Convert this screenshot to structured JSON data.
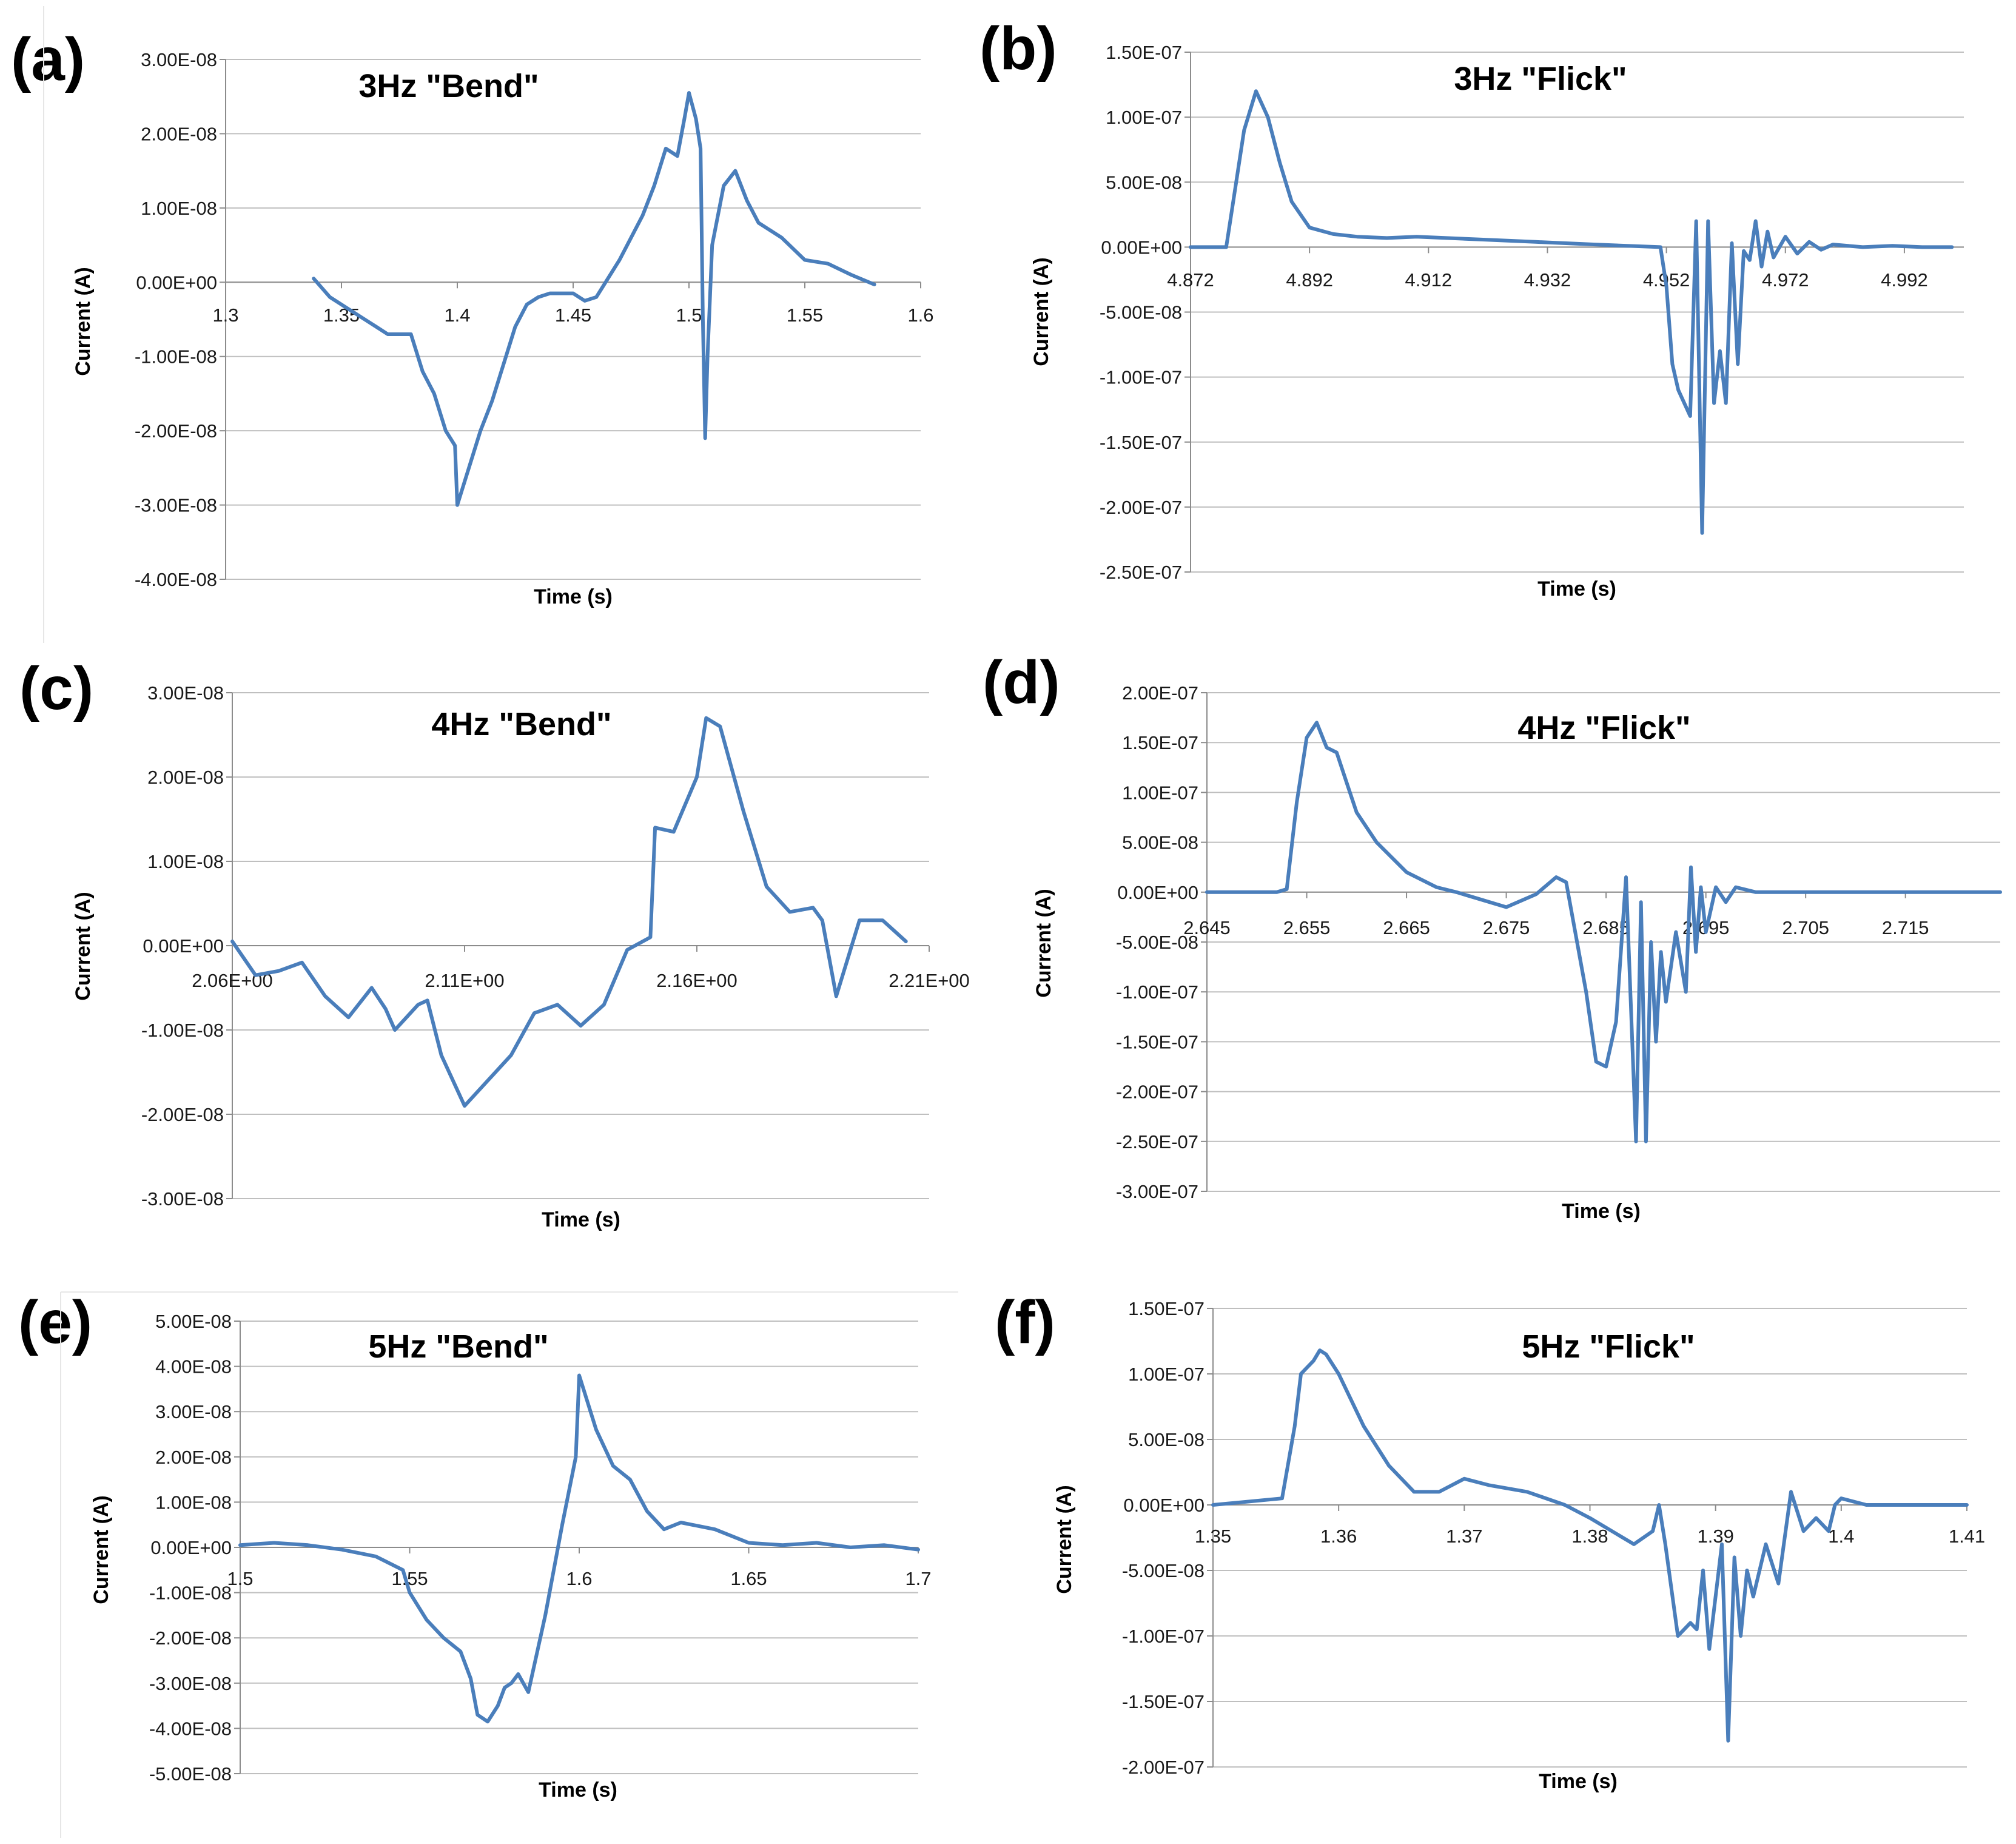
{
  "figure": {
    "line_color": "#4a7ebb",
    "grid_color": "#bfbfbf"
  },
  "chart_data": [
    {
      "id": "a",
      "letter": "(a)",
      "type": "line",
      "title": "3Hz \"Bend\"",
      "xlabel": "Time (s)",
      "ylabel": "Current (A)",
      "xlim": [
        1.3,
        1.6
      ],
      "ylim": [
        -4e-08,
        3e-08
      ],
      "xticks": [
        1.3,
        1.35,
        1.4,
        1.45,
        1.5,
        1.55,
        1.6
      ],
      "xtick_labels": [
        "1.3",
        "1.35",
        "1.4",
        "1.45",
        "1.5",
        "1.55",
        "1.6"
      ],
      "yticks": [
        3e-08,
        2e-08,
        1e-08,
        0,
        -1e-08,
        -2e-08,
        -3e-08,
        -4e-08
      ],
      "ytick_labels": [
        "3.00E-08",
        "2.00E-08",
        "1.00E-08",
        "0.00E+00",
        "-1.00E-08",
        "-2.00E-08",
        "-3.00E-08",
        "-4.00E-08"
      ],
      "series": [
        {
          "name": "Current",
          "x": [
            1.338,
            1.345,
            1.355,
            1.36,
            1.365,
            1.37,
            1.375,
            1.38,
            1.385,
            1.39,
            1.395,
            1.399,
            1.4,
            1.405,
            1.41,
            1.415,
            1.42,
            1.425,
            1.43,
            1.435,
            1.44,
            1.45,
            1.455,
            1.46,
            1.47,
            1.48,
            1.485,
            1.49,
            1.495,
            1.498,
            1.5,
            1.503,
            1.505,
            1.506,
            1.507,
            1.508,
            1.51,
            1.515,
            1.52,
            1.525,
            1.53,
            1.54,
            1.55,
            1.56,
            1.57,
            1.58
          ],
          "y": [
            5e-10,
            -2e-09,
            -4e-09,
            -5e-09,
            -6e-09,
            -7e-09,
            -7e-09,
            -7e-09,
            -1.2e-08,
            -1.5e-08,
            -2e-08,
            -2.2e-08,
            -3e-08,
            -2.5e-08,
            -2e-08,
            -1.6e-08,
            -1.1e-08,
            -6e-09,
            -3e-09,
            -2e-09,
            -1.5e-09,
            -1.5e-09,
            -2.5e-09,
            -2e-09,
            3e-09,
            9e-09,
            1.3e-08,
            1.8e-08,
            1.7e-08,
            2.2e-08,
            2.55e-08,
            2.2e-08,
            1.8e-08,
            -5e-09,
            -2.1e-08,
            -1e-08,
            5e-09,
            1.3e-08,
            1.5e-08,
            1.1e-08,
            8e-09,
            6e-09,
            3e-09,
            2.5e-09,
            1e-09,
            -3e-10
          ]
        }
      ]
    },
    {
      "id": "b",
      "letter": "(b)",
      "type": "line",
      "title": "3Hz  \"Flick\"",
      "xlabel": "Time (s)",
      "ylabel": "Current (A)",
      "xlim": [
        4.872,
        5.002
      ],
      "ylim": [
        -2.5e-07,
        1.5e-07
      ],
      "xticks": [
        4.872,
        4.892,
        4.912,
        4.932,
        4.952,
        4.972,
        4.992
      ],
      "xtick_labels": [
        "4.872",
        "4.892",
        "4.912",
        "4.932",
        "4.952",
        "4.972",
        "4.992"
      ],
      "yticks": [
        1.5e-07,
        1e-07,
        5e-08,
        0,
        -5e-08,
        -1e-07,
        -1.5e-07,
        -2e-07,
        -2.5e-07
      ],
      "ytick_labels": [
        "1.50E-07",
        "1.00E-07",
        "5.00E-08",
        "0.00E+00",
        "-5.00E-08",
        "-1.00E-07",
        "-1.50E-07",
        "-2.00E-07",
        "-2.50E-07"
      ],
      "series": [
        {
          "name": "Current",
          "x": [
            4.872,
            4.878,
            4.879,
            4.881,
            4.883,
            4.885,
            4.887,
            4.889,
            4.892,
            4.896,
            4.9,
            4.905,
            4.91,
            4.92,
            4.93,
            4.94,
            4.951,
            4.952,
            4.953,
            4.954,
            4.956,
            4.957,
            4.958,
            4.959,
            4.96,
            4.961,
            4.962,
            4.963,
            4.964,
            4.965,
            4.966,
            4.967,
            4.968,
            4.969,
            4.97,
            4.972,
            4.974,
            4.976,
            4.978,
            4.98,
            4.985,
            4.99,
            4.995,
            5.0
          ],
          "y": [
            0,
            0,
            3e-08,
            9e-08,
            1.2e-07,
            1e-07,
            6.5e-08,
            3.5e-08,
            1.5e-08,
            1e-08,
            8e-09,
            7e-09,
            8e-09,
            6e-09,
            4e-09,
            2e-09,
            0,
            -3e-08,
            -9e-08,
            -1.1e-07,
            -1.3e-07,
            2e-08,
            -2.2e-07,
            2e-08,
            -1.2e-07,
            -8e-08,
            -1.2e-07,
            3e-09,
            -9e-08,
            -3e-09,
            -1e-08,
            2e-08,
            -1.5e-08,
            1.2e-08,
            -8e-09,
            8e-09,
            -5e-09,
            4e-09,
            -2e-09,
            2e-09,
            0,
            1e-09,
            0,
            0
          ]
        }
      ]
    },
    {
      "id": "c",
      "letter": "(c)",
      "type": "line",
      "title": "4Hz \"Bend\"",
      "xlabel": "Time (s)",
      "ylabel": "Current (A)",
      "xlim": [
        2.06,
        2.21
      ],
      "ylim": [
        -3e-08,
        3e-08
      ],
      "xticks": [
        2.06,
        2.11,
        2.16,
        2.21
      ],
      "xtick_labels": [
        "2.06E+00",
        "2.11E+00",
        "2.16E+00",
        "2.21E+00"
      ],
      "yticks": [
        3e-08,
        2e-08,
        1e-08,
        0,
        -1e-08,
        -2e-08,
        -3e-08
      ],
      "ytick_labels": [
        "3.00E-08",
        "2.00E-08",
        "1.00E-08",
        "0.00E+00",
        "-1.00E-08",
        "-2.00E-08",
        "-3.00E-08"
      ],
      "series": [
        {
          "name": "Current",
          "x": [
            2.06,
            2.065,
            2.07,
            2.075,
            2.08,
            2.085,
            2.09,
            2.093,
            2.095,
            2.1,
            2.102,
            2.105,
            2.11,
            2.115,
            2.12,
            2.125,
            2.13,
            2.135,
            2.14,
            2.145,
            2.15,
            2.151,
            2.155,
            2.16,
            2.162,
            2.165,
            2.17,
            2.175,
            2.18,
            2.185,
            2.187,
            2.19,
            2.195,
            2.2,
            2.205
          ],
          "y": [
            5e-10,
            -3.5e-09,
            -3e-09,
            -2e-09,
            -6e-09,
            -8.5e-09,
            -5e-09,
            -7.5e-09,
            -1e-08,
            -7e-09,
            -6.5e-09,
            -1.3e-08,
            -1.9e-08,
            -1.6e-08,
            -1.3e-08,
            -8e-09,
            -7e-09,
            -9.5e-09,
            -7e-09,
            -5e-10,
            1e-09,
            1.4e-08,
            1.35e-08,
            2e-08,
            2.7e-08,
            2.6e-08,
            1.6e-08,
            7e-09,
            4e-09,
            4.5e-09,
            3e-09,
            -6e-09,
            3e-09,
            3e-09,
            5e-10
          ]
        }
      ]
    },
    {
      "id": "d",
      "letter": "(d)",
      "type": "line",
      "title": "4Hz \"Flick\"",
      "xlabel": "Time (s)",
      "ylabel": "Current (A)",
      "xlim": [
        2.645,
        2.7245
      ],
      "ylim": [
        -3e-07,
        2e-07
      ],
      "xticks": [
        2.645,
        2.655,
        2.665,
        2.675,
        2.685,
        2.695,
        2.705,
        2.715
      ],
      "xtick_labels": [
        "2.645",
        "2.655",
        "2.665",
        "2.675",
        "2.685",
        "2.695",
        "2.705",
        "2.715"
      ],
      "yticks": [
        2e-07,
        1.5e-07,
        1e-07,
        5e-08,
        0,
        -5e-08,
        -1e-07,
        -1.5e-07,
        -2e-07,
        -2.5e-07,
        -3e-07
      ],
      "ytick_labels": [
        "2.00E-07",
        "1.50E-07",
        "1.00E-07",
        "5.00E-08",
        "0.00E+00",
        "-5.00E-08",
        "-1.00E-07",
        "-1.50E-07",
        "-2.00E-07",
        "-2.50E-07",
        "-3.00E-07"
      ],
      "series": [
        {
          "name": "Current",
          "x": [
            2.645,
            2.652,
            2.653,
            2.654,
            2.655,
            2.656,
            2.657,
            2.658,
            2.659,
            2.66,
            2.662,
            2.665,
            2.668,
            2.67,
            2.675,
            2.678,
            2.68,
            2.681,
            2.683,
            2.684,
            2.685,
            2.686,
            2.687,
            2.688,
            2.6885,
            2.689,
            2.6895,
            2.69,
            2.6905,
            2.691,
            2.692,
            2.693,
            2.6935,
            2.694,
            2.6945,
            2.695,
            2.696,
            2.697,
            2.698,
            2.7,
            2.71,
            2.72,
            2.7245
          ],
          "y": [
            0,
            0,
            3e-09,
            9e-08,
            1.55e-07,
            1.7e-07,
            1.45e-07,
            1.4e-07,
            1.1e-07,
            8e-08,
            5e-08,
            2e-08,
            5e-09,
            0,
            -1.5e-08,
            -2e-09,
            1.5e-08,
            1e-08,
            -1e-07,
            -1.7e-07,
            -1.75e-07,
            -1.3e-07,
            1.5e-08,
            -2.5e-07,
            -1e-08,
            -2.5e-07,
            -5e-08,
            -1.5e-07,
            -6e-08,
            -1.1e-07,
            -4e-08,
            -1e-07,
            2.5e-08,
            -6e-08,
            5e-09,
            -4e-08,
            5e-09,
            -1e-08,
            5e-09,
            0,
            0,
            0,
            0
          ]
        }
      ]
    },
    {
      "id": "e",
      "letter": "(e)",
      "type": "line",
      "title": "5Hz \"Bend\"",
      "xlabel": "Time (s)",
      "ylabel": "Current (A)",
      "xlim": [
        1.5,
        1.7
      ],
      "ylim": [
        -5e-08,
        5e-08
      ],
      "xticks": [
        1.5,
        1.55,
        1.6,
        1.65,
        1.7
      ],
      "xtick_labels": [
        "1.5",
        "1.55",
        "1.6",
        "1.65",
        "1.7"
      ],
      "yticks": [
        5e-08,
        4e-08,
        3e-08,
        2e-08,
        1e-08,
        0,
        -1e-08,
        -2e-08,
        -3e-08,
        -4e-08,
        -5e-08
      ],
      "ytick_labels": [
        "5.00E-08",
        "4.00E-08",
        "3.00E-08",
        "2.00E-08",
        "1.00E-08",
        "0.00E+00",
        "-1.00E-08",
        "-2.00E-08",
        "-3.00E-08",
        "-4.00E-08",
        "-5.00E-08"
      ],
      "series": [
        {
          "name": "Current",
          "x": [
            1.5,
            1.51,
            1.52,
            1.53,
            1.54,
            1.548,
            1.55,
            1.555,
            1.56,
            1.565,
            1.568,
            1.57,
            1.573,
            1.576,
            1.578,
            1.58,
            1.582,
            1.585,
            1.59,
            1.595,
            1.599,
            1.6,
            1.605,
            1.61,
            1.615,
            1.62,
            1.625,
            1.63,
            1.64,
            1.65,
            1.66,
            1.67,
            1.68,
            1.69,
            1.7
          ],
          "y": [
            5e-10,
            1e-09,
            5e-10,
            -5e-10,
            -2e-09,
            -5e-09,
            -1e-08,
            -1.6e-08,
            -2e-08,
            -2.3e-08,
            -2.9e-08,
            -3.7e-08,
            -3.85e-08,
            -3.5e-08,
            -3.1e-08,
            -3e-08,
            -2.8e-08,
            -3.2e-08,
            -1.5e-08,
            5e-09,
            2e-08,
            3.8e-08,
            2.6e-08,
            1.8e-08,
            1.5e-08,
            8e-09,
            4e-09,
            5.5e-09,
            4e-09,
            1e-09,
            5e-10,
            1e-09,
            0,
            5e-10,
            -5e-10
          ]
        }
      ]
    },
    {
      "id": "f",
      "letter": "(f)",
      "type": "line",
      "title": "5Hz \"Flick\"",
      "xlabel": "Time (s)",
      "ylabel": "Current (A)",
      "xlim": [
        1.35,
        1.41
      ],
      "ylim": [
        -2e-07,
        1.5e-07
      ],
      "xticks": [
        1.35,
        1.36,
        1.37,
        1.38,
        1.39,
        1.4,
        1.41
      ],
      "xtick_labels": [
        "1.35",
        "1.36",
        "1.37",
        "1.38",
        "1.39",
        "1.4",
        "1.41"
      ],
      "yticks": [
        1.5e-07,
        1e-07,
        5e-08,
        0,
        -5e-08,
        -1e-07,
        -1.5e-07,
        -2e-07
      ],
      "ytick_labels": [
        "1.50E-07",
        "1.00E-07",
        "5.00E-08",
        "0.00E+00",
        "-5.00E-08",
        "-1.00E-07",
        "-1.50E-07",
        "-2.00E-07"
      ],
      "series": [
        {
          "name": "Current",
          "x": [
            1.35,
            1.3555,
            1.3565,
            1.357,
            1.358,
            1.3585,
            1.359,
            1.36,
            1.362,
            1.364,
            1.366,
            1.368,
            1.37,
            1.372,
            1.375,
            1.378,
            1.38,
            1.3835,
            1.385,
            1.3855,
            1.386,
            1.387,
            1.388,
            1.3885,
            1.389,
            1.3895,
            1.3905,
            1.391,
            1.3915,
            1.392,
            1.3925,
            1.393,
            1.394,
            1.395,
            1.396,
            1.397,
            1.398,
            1.399,
            1.3995,
            1.4,
            1.402,
            1.405,
            1.41
          ],
          "y": [
            0,
            5e-09,
            6e-08,
            1e-07,
            1.1e-07,
            1.18e-07,
            1.15e-07,
            1e-07,
            6e-08,
            3e-08,
            1e-08,
            1e-08,
            2e-08,
            1.5e-08,
            1e-08,
            0,
            -1e-08,
            -3e-08,
            -2e-08,
            0,
            -3e-08,
            -1e-07,
            -9e-08,
            -9.5e-08,
            -5e-08,
            -1.1e-07,
            -3e-08,
            -1.8e-07,
            -4e-08,
            -1e-07,
            -5e-08,
            -7e-08,
            -3e-08,
            -6e-08,
            1e-08,
            -2e-08,
            -1e-08,
            -2e-08,
            0,
            5e-09,
            0,
            0,
            0
          ]
        }
      ]
    }
  ]
}
